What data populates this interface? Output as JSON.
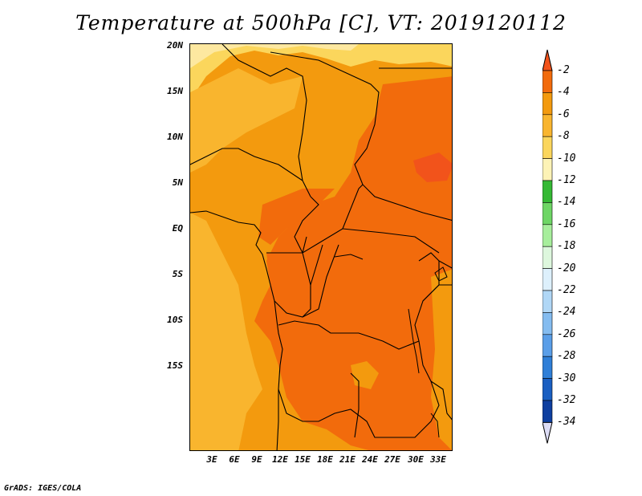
{
  "title": "Temperature at 500hPa [C], VT: 2019120112",
  "credit": "GrADS: IGES/COLA",
  "latitude_labels": [
    "20N",
    "15N",
    "10N",
    "5N",
    "EQ",
    "5S",
    "10S",
    "15S"
  ],
  "longitude_labels": [
    "3E",
    "6E",
    "9E",
    "12E",
    "15E",
    "18E",
    "21E",
    "24E",
    "27E",
    "30E",
    "33E"
  ],
  "colorbar": {
    "labels": [
      "-2",
      "-4",
      "-6",
      "-8",
      "-10",
      "-12",
      "-14",
      "-16",
      "-18",
      "-20",
      "-22",
      "-24",
      "-26",
      "-28",
      "-30",
      "-32",
      "-34"
    ],
    "colors": [
      "#f2531b",
      "#f26b0c",
      "#f39a0e",
      "#f9b52e",
      "#fbd65c",
      "#fdf3b6",
      "#35b934",
      "#6ed665",
      "#a7ee9c",
      "#ddf7dd",
      "#ddf0fc",
      "#b0d7f6",
      "#84bcf0",
      "#5a9ee8",
      "#2f7fd8",
      "#1a5fc2",
      "#0e3fa0",
      "#0b1f73",
      "#dcdcf5"
    ]
  },
  "map_colors": {
    "orange_dark": "#f26b0c",
    "orange_mid": "#f39a0e",
    "orange_light": "#f9b52e",
    "yellow": "#fbd65c",
    "pale": "#fde8a0",
    "border": "#000000"
  }
}
